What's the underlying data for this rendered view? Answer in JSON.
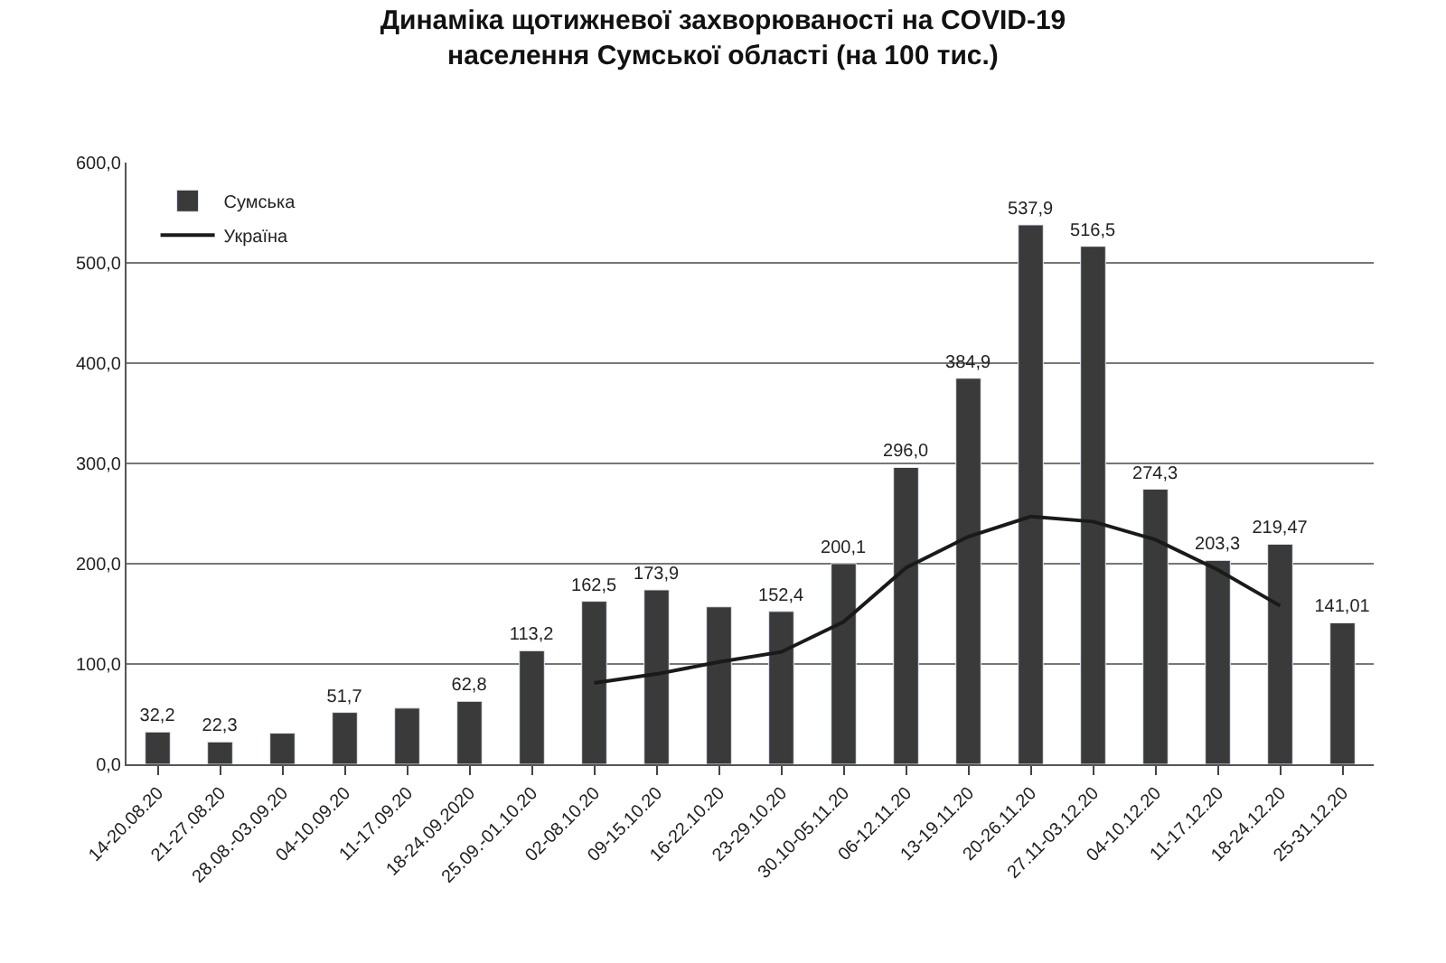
{
  "chart_data": {
    "type": "bar",
    "title": "Динаміка щотижневої захворюваності на COVID-19",
    "subtitle": "населення Сумської області (на 100 тис.)",
    "categories": [
      "14-20.08.20",
      "21-27.08.20",
      "28.08.-03.09.20",
      "04-10.09.20",
      "11-17.09.20",
      "18-24.09.2020",
      "25.09.-01.10.20",
      "02-08.10.20",
      "09-15.10.20",
      "16-22.10.20",
      "23-29.10.20",
      "30.10-05.11.20",
      "06-12.11.20",
      "13-19.11.20",
      "20-26.11.20",
      "27.11-03.12.20",
      "04-10.12.20",
      "11-17.12.20",
      "18-24.12.20",
      "25-31.12.20"
    ],
    "series": [
      {
        "name": "Сумська",
        "color": "#3a3a3a",
        "values": [
          32.2,
          22.3,
          31,
          51.7,
          56,
          62.8,
          113.2,
          162.5,
          173.9,
          157,
          152.4,
          200.1,
          296.0,
          384.9,
          537.9,
          516.5,
          274.3,
          203.3,
          219.47,
          141.01
        ],
        "value_labels": [
          "32,2",
          "22,3",
          null,
          "51,7",
          null,
          "62,8",
          "113,2",
          "162,5",
          "173,9",
          null,
          "152,4",
          "200,1",
          "296,0",
          "384,9",
          "537,9",
          "516,5",
          "274,3",
          "203,3",
          "219,47",
          "141,01"
        ]
      },
      {
        "name": "Україна",
        "type": "line",
        "color": "#1a1a1a",
        "values": [
          null,
          null,
          null,
          null,
          null,
          null,
          null,
          81,
          90,
          102,
          112,
          142,
          196,
          227,
          247,
          242,
          224,
          194,
          158,
          null
        ]
      }
    ],
    "ylim": [
      0,
      600
    ],
    "yticks": [
      {
        "value": 0,
        "label": "0,0"
      },
      {
        "value": 100,
        "label": "100,0"
      },
      {
        "value": 200,
        "label": "200,0"
      },
      {
        "value": 300,
        "label": "300,0"
      },
      {
        "value": 400,
        "label": "400,0"
      },
      {
        "value": 500,
        "label": "500,0"
      },
      {
        "value": 600,
        "label": "600,0"
      }
    ],
    "grid": "y",
    "legend": "top left",
    "marker": "none",
    "line_style": "solid"
  }
}
